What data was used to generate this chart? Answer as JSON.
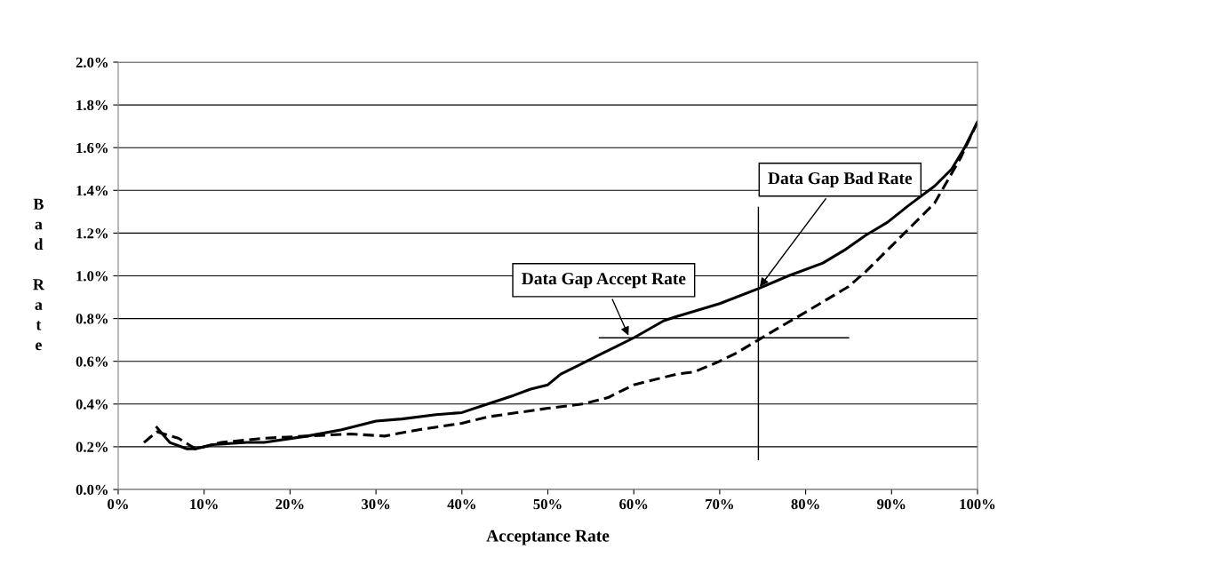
{
  "chart_data": {
    "type": "line",
    "xlabel": "Acceptance Rate",
    "ylabel": "Bad Rate",
    "xlim": [
      0,
      100
    ],
    "ylim": [
      0,
      2.0
    ],
    "xticks": [
      {
        "value": 0,
        "label": "0%"
      },
      {
        "value": 10,
        "label": "10%"
      },
      {
        "value": 20,
        "label": "20%"
      },
      {
        "value": 30,
        "label": "30%"
      },
      {
        "value": 40,
        "label": "40%"
      },
      {
        "value": 50,
        "label": "50%"
      },
      {
        "value": 60,
        "label": "60%"
      },
      {
        "value": 70,
        "label": "70%"
      },
      {
        "value": 80,
        "label": "80%"
      },
      {
        "value": 90,
        "label": "90%"
      },
      {
        "value": 100,
        "label": "100%"
      }
    ],
    "yticks": [
      {
        "value": 0,
        "label": "0.0%"
      },
      {
        "value": 0.2,
        "label": "0.2%"
      },
      {
        "value": 0.4,
        "label": "0.4%"
      },
      {
        "value": 0.6,
        "label": "0.6%"
      },
      {
        "value": 0.8,
        "label": "0.8%"
      },
      {
        "value": 1.0,
        "label": "1.0%"
      },
      {
        "value": 1.2,
        "label": "1.2%"
      },
      {
        "value": 1.4,
        "label": "1.4%"
      },
      {
        "value": 1.6,
        "label": "1.6%"
      },
      {
        "value": 1.8,
        "label": "1.8%"
      },
      {
        "value": 2.0,
        "label": "2.0%"
      }
    ],
    "grid": "y",
    "legend": false,
    "marker": "none",
    "series": [
      {
        "color": "#000000",
        "line_style": "solid",
        "x": [
          4.5,
          6,
          8,
          9,
          11,
          15,
          17,
          22,
          26,
          30,
          33,
          37,
          40,
          43,
          46,
          48,
          50,
          51.5,
          53.5,
          56,
          58,
          60,
          63.5,
          65,
          70,
          74.5,
          78,
          82,
          84.5,
          87,
          89.5,
          92,
          95,
          97,
          98.5,
          100
        ],
        "values": [
          0.29,
          0.22,
          0.19,
          0.19,
          0.21,
          0.22,
          0.22,
          0.25,
          0.28,
          0.32,
          0.33,
          0.35,
          0.36,
          0.4,
          0.44,
          0.47,
          0.49,
          0.54,
          0.58,
          0.63,
          0.67,
          0.71,
          0.79,
          0.81,
          0.87,
          0.94,
          1.0,
          1.06,
          1.12,
          1.19,
          1.25,
          1.33,
          1.42,
          1.5,
          1.6,
          1.72
        ]
      },
      {
        "color": "#000000",
        "line_style": "dashed",
        "x": [
          3,
          4.5,
          7,
          9,
          10,
          12,
          17,
          22,
          27,
          31,
          35,
          40,
          43,
          50,
          54,
          57,
          60,
          65,
          67,
          70,
          72,
          74.5,
          77,
          80,
          85,
          87,
          90,
          92,
          95,
          98,
          100
        ],
        "values": [
          0.22,
          0.27,
          0.24,
          0.19,
          0.2,
          0.22,
          0.24,
          0.25,
          0.26,
          0.25,
          0.28,
          0.31,
          0.34,
          0.38,
          0.4,
          0.43,
          0.49,
          0.54,
          0.55,
          0.6,
          0.64,
          0.7,
          0.76,
          0.83,
          0.95,
          1.02,
          1.14,
          1.22,
          1.34,
          1.55,
          1.72
        ]
      },
      {
        "color": "#000000",
        "line_style": "solid",
        "x": [
          74.5,
          74.5
        ],
        "values": [
          0.14,
          1.32
        ]
      },
      {
        "color": "#000000",
        "line_style": "solid",
        "x": [
          56,
          85
        ],
        "values": [
          0.71,
          0.71
        ]
      }
    ],
    "annotations": [
      {
        "text": "Data Gap Bad Rate",
        "x": 74.5,
        "y": 0.94
      },
      {
        "text": "Data Gap Accept Rate",
        "x": 59.5,
        "y": 0.71
      }
    ]
  }
}
